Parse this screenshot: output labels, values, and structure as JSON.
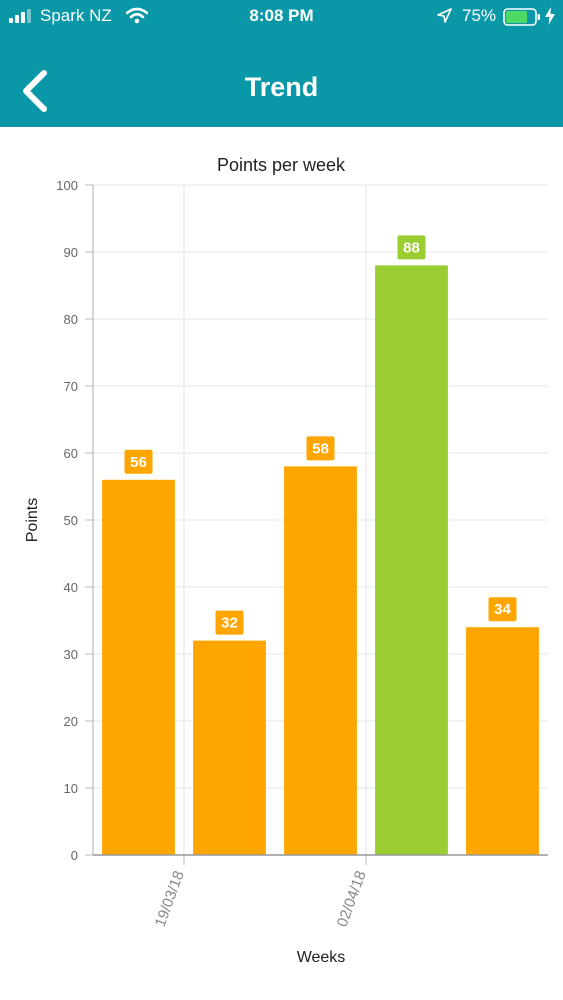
{
  "status_bar": {
    "carrier": "Spark NZ",
    "time": "8:08 PM",
    "battery_percent": "75%",
    "battery_level": 0.75
  },
  "header": {
    "title": "Trend",
    "background_color": "#0A98A8"
  },
  "chart_data": {
    "type": "bar",
    "title": "Points per week",
    "xlabel": "Weeks",
    "ylabel": "Points",
    "ylim": [
      0,
      100
    ],
    "yticks": [
      0,
      10,
      20,
      30,
      40,
      50,
      60,
      70,
      80,
      90,
      100
    ],
    "xticks": [
      {
        "label": "19/03/18",
        "between_bars": [
          1,
          2
        ]
      },
      {
        "label": "02/04/18",
        "between_bars": [
          3,
          4
        ]
      }
    ],
    "values": [
      56,
      32,
      58,
      88,
      34
    ],
    "bar_colors": [
      "#FFA500",
      "#FFA500",
      "#FFA500",
      "#9ACD32",
      "#FFA500"
    ],
    "data_labels": [
      "56",
      "32",
      "58",
      "88",
      "34"
    ],
    "grid": true,
    "legend": "none"
  }
}
